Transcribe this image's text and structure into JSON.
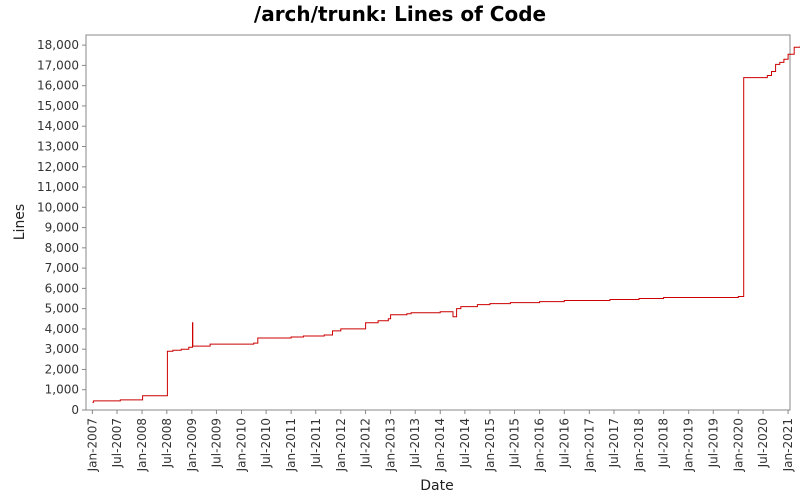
{
  "chart_data": {
    "type": "line",
    "title": "/arch/trunk: Lines of Code",
    "xlabel": "Date",
    "ylabel": "Lines",
    "ylim": [
      0,
      18500
    ],
    "xlim": [
      "2006-11-15",
      "2021-01-15"
    ],
    "grid": false,
    "legend": "none",
    "y_ticks": [
      0,
      1000,
      2000,
      3000,
      4000,
      5000,
      6000,
      7000,
      8000,
      9000,
      10000,
      11000,
      12000,
      13000,
      14000,
      15000,
      16000,
      17000,
      18000
    ],
    "y_tick_labels": [
      "0",
      "1,000",
      "2,000",
      "3,000",
      "4,000",
      "5,000",
      "6,000",
      "7,000",
      "8,000",
      "9,000",
      "10,000",
      "11,000",
      "12,000",
      "13,000",
      "14,000",
      "15,000",
      "16,000",
      "17,000",
      "18,000"
    ],
    "x_ticks": [
      {
        "label": "Jan-2007",
        "date": "2007-01-01"
      },
      {
        "label": "Jul-2007",
        "date": "2007-07-01"
      },
      {
        "label": "Jan-2008",
        "date": "2008-01-01"
      },
      {
        "label": "Jul-2008",
        "date": "2008-07-01"
      },
      {
        "label": "Jan-2009",
        "date": "2009-01-01"
      },
      {
        "label": "Jul-2009",
        "date": "2009-07-01"
      },
      {
        "label": "Jan-2010",
        "date": "2010-01-01"
      },
      {
        "label": "Jul-2010",
        "date": "2010-07-01"
      },
      {
        "label": "Jan-2011",
        "date": "2011-01-01"
      },
      {
        "label": "Jul-2011",
        "date": "2011-07-01"
      },
      {
        "label": "Jan-2012",
        "date": "2012-01-01"
      },
      {
        "label": "Jul-2012",
        "date": "2012-07-01"
      },
      {
        "label": "Jan-2013",
        "date": "2013-01-01"
      },
      {
        "label": "Jul-2013",
        "date": "2013-07-01"
      },
      {
        "label": "Jan-2014",
        "date": "2014-01-01"
      },
      {
        "label": "Jul-2014",
        "date": "2014-07-01"
      },
      {
        "label": "Jan-2015",
        "date": "2015-01-01"
      },
      {
        "label": "Jul-2015",
        "date": "2015-07-01"
      },
      {
        "label": "Jan-2016",
        "date": "2016-01-01"
      },
      {
        "label": "Jul-2016",
        "date": "2016-07-01"
      },
      {
        "label": "Jan-2017",
        "date": "2017-01-01"
      },
      {
        "label": "Jul-2017",
        "date": "2017-07-01"
      },
      {
        "label": "Jan-2018",
        "date": "2018-01-01"
      },
      {
        "label": "Jul-2018",
        "date": "2018-07-01"
      },
      {
        "label": "Jan-2019",
        "date": "2019-01-01"
      },
      {
        "label": "Jul-2019",
        "date": "2019-07-01"
      },
      {
        "label": "Jan-2020",
        "date": "2020-01-01"
      },
      {
        "label": "Jul-2020",
        "date": "2020-07-01"
      },
      {
        "label": "Jan-2021",
        "date": "2021-01-01"
      }
    ],
    "series": [
      {
        "color": "#cc0000",
        "step": true,
        "points": [
          [
            "2007-01-01",
            380
          ],
          [
            "2007-01-10",
            450
          ],
          [
            "2007-07-15",
            450
          ],
          [
            "2007-07-25",
            500
          ],
          [
            "2007-12-15",
            500
          ],
          [
            "2008-01-05",
            700
          ],
          [
            "2008-07-01",
            700
          ],
          [
            "2008-07-05",
            2900
          ],
          [
            "2008-08-15",
            2950
          ],
          [
            "2008-10-15",
            3000
          ],
          [
            "2008-12-10",
            3100
          ],
          [
            "2009-01-05",
            3100
          ],
          [
            "2009-01-06",
            4300
          ],
          [
            "2009-01-08",
            3150
          ],
          [
            "2009-05-01",
            3150
          ],
          [
            "2009-05-15",
            3250
          ],
          [
            "2010-04-01",
            3300
          ],
          [
            "2010-05-01",
            3550
          ],
          [
            "2010-12-01",
            3550
          ],
          [
            "2011-01-01",
            3600
          ],
          [
            "2011-04-01",
            3650
          ],
          [
            "2011-09-01",
            3700
          ],
          [
            "2011-11-01",
            3900
          ],
          [
            "2012-01-01",
            4000
          ],
          [
            "2012-06-01",
            4000
          ],
          [
            "2012-07-01",
            4300
          ],
          [
            "2012-10-01",
            4400
          ],
          [
            "2012-12-15",
            4500
          ],
          [
            "2013-01-01",
            4700
          ],
          [
            "2013-05-01",
            4750
          ],
          [
            "2013-06-01",
            4800
          ],
          [
            "2014-01-01",
            4850
          ],
          [
            "2014-04-01",
            4850
          ],
          [
            "2014-04-05",
            4600
          ],
          [
            "2014-05-01",
            5000
          ],
          [
            "2014-06-01",
            5100
          ],
          [
            "2014-10-01",
            5200
          ],
          [
            "2015-01-01",
            5250
          ],
          [
            "2015-06-01",
            5300
          ],
          [
            "2016-01-01",
            5350
          ],
          [
            "2016-07-01",
            5400
          ],
          [
            "2017-06-01",
            5450
          ],
          [
            "2018-01-01",
            5500
          ],
          [
            "2018-07-01",
            5550
          ],
          [
            "2020-01-01",
            5600
          ],
          [
            "2020-02-05",
            5600
          ],
          [
            "2020-02-10",
            16400
          ],
          [
            "2020-07-01",
            16400
          ],
          [
            "2020-08-01",
            16500
          ],
          [
            "2020-09-01",
            16700
          ],
          [
            "2020-10-01",
            17050
          ],
          [
            "2020-11-01",
            17150
          ],
          [
            "2020-12-01",
            17300
          ],
          [
            "2021-01-01",
            17550
          ],
          [
            "2021-02-15",
            17900
          ],
          [
            "2021-04-01",
            17950
          ],
          [
            "2021-05-15",
            17950
          ]
        ]
      }
    ]
  }
}
